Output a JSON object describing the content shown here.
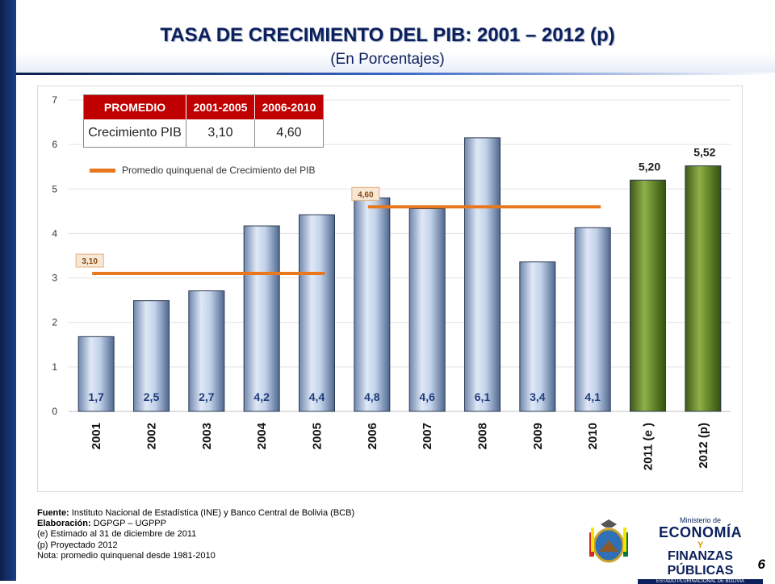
{
  "title": "TASA DE CRECIMIENTO  DEL PIB: 2001 – 2012 (p)",
  "subtitle": "(En Porcentajes)",
  "promedio_table": {
    "headers": [
      "PROMEDIO",
      "2001-2005",
      "2006-2010"
    ],
    "row_label": "Crecimiento PIB",
    "values": [
      "3,10",
      "4,60"
    ]
  },
  "chart_data": {
    "type": "bar",
    "categories": [
      "2001",
      "2002",
      "2003",
      "2004",
      "2005",
      "2006",
      "2007",
      "2008",
      "2009",
      "2010",
      "2011 (e )",
      "2012 (p)"
    ],
    "values": [
      1.68,
      2.49,
      2.71,
      4.17,
      4.42,
      4.8,
      4.56,
      6.15,
      3.36,
      4.13,
      5.2,
      5.52
    ],
    "value_labels": [
      "1,7",
      "2,5",
      "2,7",
      "4,2",
      "4,4",
      "4,8",
      "4,6",
      "6,1",
      "3,4",
      "4,1",
      "5,20",
      "5,52"
    ],
    "bar_colors": [
      "#b8cbe6",
      "#b8cbe6",
      "#b8cbe6",
      "#b8cbe6",
      "#b8cbe6",
      "#b8cbe6",
      "#b8cbe6",
      "#b8cbe6",
      "#b8cbe6",
      "#b8cbe6",
      "#6b8e2e",
      "#6b8e2e"
    ],
    "y_ticks": [
      "0",
      "1",
      "2",
      "3",
      "4",
      "5",
      "6",
      "7"
    ],
    "ylim": [
      0,
      7
    ],
    "legend_label": "Promedio quinquenal de Crecimiento del PIB",
    "legend_color": "#e8771e",
    "averages": [
      {
        "label": "3,10",
        "value": 3.1,
        "from": "2001",
        "to": "2005"
      },
      {
        "label": "4,60",
        "value": 4.6,
        "from": "2006",
        "to": "2010"
      }
    ],
    "grid": true
  },
  "notes": {
    "fuente_label": "Fuente:",
    "fuente_text": " Instituto Nacional de Estadística (INE) y Banco Central de Bolivia (BCB)",
    "elaboracion_label": "Elaboración:",
    "elaboracion_text": " DGPGP – UGPPP",
    "line3": "(e) Estimado al 31 de diciembre de 2011",
    "line4": "(p) Proyectado 2012",
    "line5": "Nota: promedio quinquenal desde 1981-2010"
  },
  "ministry": {
    "line1": "Ministerio de",
    "line2": "ECONOMÍA",
    "line3": "Y",
    "line4": "FINANZAS PÚBLICAS",
    "line5": "ESTADO PLURINACIONAL DE BOLIVIA"
  },
  "page_number": "6"
}
